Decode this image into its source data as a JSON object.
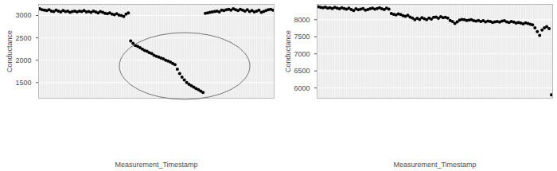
{
  "chart_data": [
    {
      "type": "scatter",
      "x_label": "Measurement_Timestamp",
      "y_label": "Conductance",
      "categories": [
        null,
        null,
        null,
        null,
        null,
        null,
        null,
        null,
        null,
        null,
        null,
        null,
        null,
        null,
        null,
        null,
        null,
        null,
        null,
        null,
        null,
        null,
        null,
        null,
        null,
        null,
        null,
        null,
        null,
        null,
        null,
        null,
        null,
        null,
        null,
        null,
        null,
        null,
        null,
        null,
        null,
        null,
        null,
        null,
        null,
        null,
        null,
        null,
        null,
        null,
        null,
        null,
        null,
        null,
        null,
        null,
        null,
        null,
        null,
        null,
        null,
        null,
        null,
        null,
        null,
        null,
        null,
        null,
        null,
        null,
        null,
        null,
        null,
        null,
        null,
        null,
        null,
        null,
        null,
        null,
        null,
        null,
        null,
        null,
        null,
        null,
        null,
        null,
        null,
        null,
        null,
        null,
        null,
        null,
        null,
        null,
        null,
        null,
        null,
        null,
        null
      ],
      "values": [
        3150,
        3130,
        3120,
        3110,
        3130,
        3100,
        3090,
        3120,
        3100,
        3080,
        3110,
        3090,
        3100,
        3070,
        3090,
        3100,
        3080,
        3100,
        3090,
        3110,
        3080,
        3090,
        3070,
        3100,
        3080,
        3060,
        3090,
        3070,
        3050,
        3040,
        3060,
        3030,
        3020,
        3040,
        3010,
        3000,
        2980,
        3030,
        3060,
        2430,
        2380,
        2330,
        2310,
        2280,
        2250,
        2220,
        2200,
        2170,
        2150,
        2110,
        2090,
        2070,
        2050,
        2030,
        2000,
        1980,
        1960,
        1930,
        1900,
        1800,
        1700,
        1620,
        1560,
        1500,
        1460,
        1430,
        1400,
        1370,
        1340,
        1310,
        1280,
        3050,
        3060,
        3070,
        3080,
        3090,
        3100,
        3080,
        3120,
        3110,
        3130,
        3140,
        3120,
        3150,
        3130,
        3110,
        3140,
        3120,
        3100,
        3130,
        3090,
        3110,
        3080,
        3100,
        3120,
        3070,
        3090,
        3110,
        3130,
        3140,
        3120
      ],
      "ylim": [
        1150,
        3250
      ],
      "yticks": [
        1500,
        2000,
        2500,
        3000
      ],
      "grid": true,
      "tick_labels": "y",
      "color": "#000000",
      "marker": "circle"
    },
    {
      "type": "scatter",
      "x_label": "Measurement_Timestamp",
      "y_label": "Conductance",
      "categories": [
        null,
        null,
        null,
        null,
        null,
        null,
        null,
        null,
        null,
        null,
        null,
        null,
        null,
        null,
        null,
        null,
        null,
        null,
        null,
        null,
        null,
        null,
        null,
        null,
        null,
        null,
        null,
        null,
        null,
        null,
        null,
        null,
        null,
        null,
        null,
        null,
        null,
        null,
        null,
        null,
        null,
        null,
        null,
        null,
        null,
        null,
        null,
        null,
        null,
        null,
        null,
        null,
        null,
        null,
        null,
        null,
        null,
        null,
        null,
        null,
        null,
        null,
        null,
        null,
        null,
        null,
        null,
        null,
        null,
        null,
        null,
        null,
        null,
        null,
        null,
        null,
        null,
        null,
        null,
        null,
        null,
        null,
        null,
        null,
        null,
        null,
        null,
        null,
        null,
        null,
        null,
        null,
        null,
        null,
        null,
        null,
        null,
        null,
        null,
        null
      ],
      "values": [
        8380,
        8360,
        8350,
        8370,
        8340,
        8350,
        8330,
        8360,
        8340,
        8320,
        8350,
        8330,
        8310,
        8340,
        8300,
        8270,
        8320,
        8290,
        8310,
        8330,
        8280,
        8300,
        8320,
        8340,
        8310,
        8330,
        8350,
        8320,
        8300,
        8340,
        8310,
        8180,
        8160,
        8140,
        8170,
        8150,
        8120,
        8100,
        8130,
        8080,
        8050,
        8000,
        8040,
        8010,
        8060,
        8030,
        8000,
        8050,
        8020,
        8070,
        8080,
        8040,
        8090,
        8060,
        8070,
        8050,
        7980,
        7950,
        7890,
        7940,
        7990,
        8010,
        8000,
        7980,
        7990,
        8000,
        7970,
        7960,
        7980,
        7950,
        7970,
        7940,
        7960,
        7950,
        7920,
        7940,
        7950,
        7930,
        7960,
        7970,
        7940,
        7920,
        7950,
        7930,
        7900,
        7920,
        7900,
        7880,
        7910,
        7890,
        7870,
        7850,
        7760,
        7650,
        7540,
        7700,
        7760,
        7800,
        7740,
        5800
      ],
      "ylim": [
        5700,
        8450
      ],
      "yticks": [
        6000,
        6500,
        7000,
        7500,
        8000
      ],
      "grid": true,
      "tick_labels": "y",
      "color": "#000000",
      "marker": "circle"
    }
  ]
}
